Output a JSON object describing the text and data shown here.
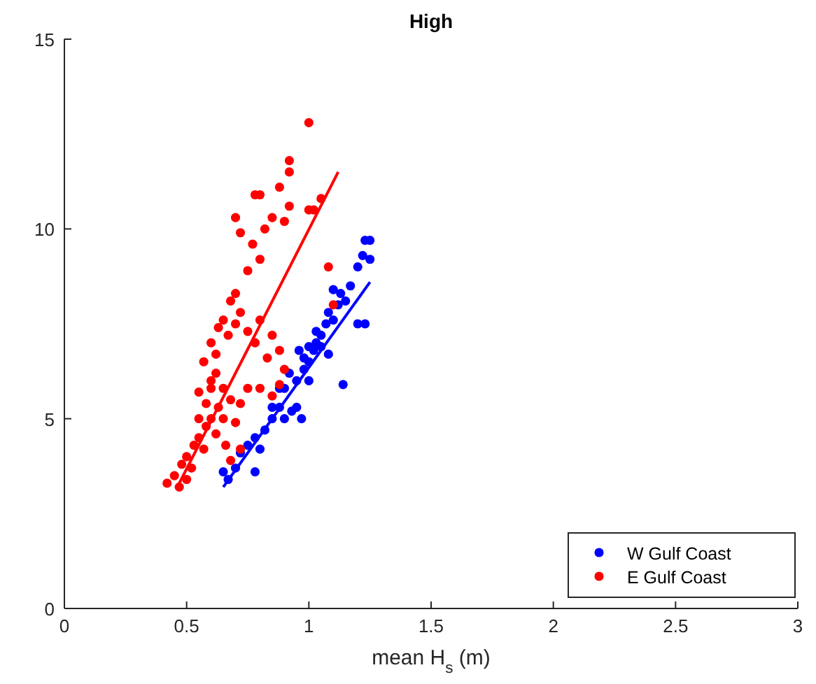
{
  "chart_data": {
    "type": "scatter",
    "title": "High",
    "xlabel": "mean H$_{s}$ (m)",
    "xlim": [
      0,
      3
    ],
    "xticks": [
      0,
      0.5,
      1,
      1.5,
      2,
      2.5,
      3
    ],
    "ylim": [
      0,
      15
    ],
    "yticks": [
      0,
      5,
      10,
      15
    ],
    "grid": false,
    "legend": "bottom right",
    "series": [
      {
        "name": "W Gulf Coast",
        "color": "#0000ff",
        "marker": "circle",
        "x": [
          0.65,
          0.67,
          0.7,
          0.72,
          0.75,
          0.78,
          0.8,
          0.82,
          0.85,
          0.88,
          0.9,
          0.93,
          0.95,
          0.97,
          0.9,
          0.92,
          0.95,
          0.98,
          1.0,
          0.78,
          0.85,
          0.88,
          1.0,
          1.02,
          1.03,
          1.05,
          1.07,
          1.08,
          1.1,
          1.12,
          1.13,
          1.1,
          1.15,
          1.05,
          1.08,
          1.2,
          1.23,
          1.14,
          1.17,
          1.2,
          1.22,
          1.23,
          1.25,
          1.25,
          1.0,
          1.03,
          0.98,
          0.96
        ],
        "values": [
          3.6,
          3.4,
          3.7,
          4.1,
          4.3,
          4.5,
          4.2,
          4.7,
          5.0,
          5.3,
          5.0,
          5.2,
          5.3,
          5.0,
          5.8,
          6.2,
          6.0,
          6.3,
          6.0,
          3.6,
          5.3,
          5.8,
          6.5,
          6.8,
          7.0,
          7.2,
          7.5,
          7.8,
          7.6,
          8.0,
          8.3,
          8.4,
          8.1,
          6.9,
          6.7,
          7.5,
          7.5,
          5.9,
          8.5,
          9.0,
          9.3,
          9.7,
          9.7,
          9.2,
          6.9,
          7.3,
          6.6,
          6.8
        ]
      },
      {
        "name": "E Gulf Coast",
        "color": "#ff0000",
        "marker": "circle",
        "x": [
          0.42,
          0.45,
          0.47,
          0.48,
          0.5,
          0.5,
          0.52,
          0.53,
          0.55,
          0.57,
          0.58,
          0.6,
          0.62,
          0.63,
          0.65,
          0.55,
          0.58,
          0.6,
          0.62,
          0.65,
          0.68,
          0.7,
          0.72,
          0.66,
          0.68,
          0.72,
          0.75,
          0.8,
          0.85,
          0.88,
          0.9,
          0.62,
          0.6,
          0.63,
          0.65,
          0.67,
          0.7,
          0.72,
          0.75,
          0.68,
          0.7,
          0.78,
          0.8,
          0.83,
          0.85,
          0.88,
          0.75,
          0.8,
          0.77,
          0.72,
          0.7,
          0.82,
          0.85,
          0.78,
          0.8,
          0.9,
          0.92,
          0.88,
          0.92,
          0.92,
          1.0,
          1.02,
          1.05,
          1.0,
          1.08,
          1.1,
          0.6,
          0.57,
          0.55
        ],
        "values": [
          3.3,
          3.5,
          3.2,
          3.8,
          3.4,
          4.0,
          3.7,
          4.3,
          4.5,
          4.2,
          4.8,
          5.0,
          4.6,
          5.3,
          5.0,
          5.0,
          5.4,
          5.8,
          6.2,
          5.8,
          5.5,
          4.9,
          5.4,
          4.3,
          3.9,
          4.2,
          5.8,
          5.8,
          5.6,
          5.9,
          6.3,
          6.7,
          7.0,
          7.4,
          7.6,
          7.2,
          7.5,
          7.8,
          7.3,
          8.1,
          8.3,
          7.0,
          7.6,
          6.6,
          7.2,
          6.8,
          8.9,
          9.2,
          9.6,
          9.9,
          10.3,
          10.0,
          10.3,
          10.9,
          10.9,
          10.2,
          10.6,
          11.1,
          11.5,
          11.8,
          10.5,
          10.5,
          10.8,
          12.8,
          9.0,
          8.0,
          6.0,
          6.5,
          5.7
        ]
      },
      {
        "color": "#0000ff",
        "type": "line",
        "marker": "none",
        "x": [
          0.65,
          1.25
        ],
        "values": [
          3.2,
          8.6
        ]
      },
      {
        "color": "#ff0000",
        "type": "line",
        "marker": "none",
        "x": [
          0.47,
          1.12
        ],
        "values": [
          3.3,
          11.5
        ]
      }
    ]
  }
}
